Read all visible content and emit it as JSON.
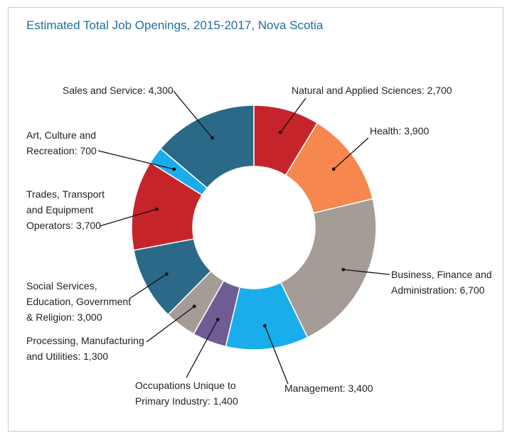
{
  "chart_data": {
    "type": "pie",
    "donut": true,
    "title": "Estimated Total Job Openings, 2015-2017, Nova Scotia",
    "slices": [
      {
        "name": "Natural and Applied Sciences",
        "value": 2700,
        "color": "#c6242b",
        "label_lines": [
          "Natural and Applied Sciences: 2,700"
        ]
      },
      {
        "name": "Health",
        "value": 3900,
        "color": "#f5874f",
        "label_lines": [
          "Health: 3,900"
        ]
      },
      {
        "name": "Business, Finance and Administration",
        "value": 6700,
        "color": "#a69c97",
        "label_lines": [
          "Business, Finance and",
          "Administration: 6,700"
        ]
      },
      {
        "name": "Management",
        "value": 3400,
        "color": "#19aeeb",
        "label_lines": [
          "Management: 3,400"
        ]
      },
      {
        "name": "Occupations Unique to Primary Industry",
        "value": 1400,
        "color": "#6f5c93",
        "label_lines": [
          "Occupations Unique to",
          "Primary Industry: 1,400"
        ]
      },
      {
        "name": "Processing, Manufacturing and Utilities",
        "value": 1300,
        "color": "#a69c97",
        "label_lines": [
          "Processing, Manufacturing",
          "and Utilities: 1,300"
        ]
      },
      {
        "name": "Social Services, Education, Government & Religion",
        "value": 3000,
        "color": "#2a6a88",
        "label_lines": [
          "Social Services,",
          "Education, Government",
          "& Religion: 3,000"
        ]
      },
      {
        "name": "Trades, Transport and Equipment Operators",
        "value": 3700,
        "color": "#c6242b",
        "label_lines": [
          "Trades, Transport",
          "and Equipment",
          "Operators: 3,700"
        ]
      },
      {
        "name": "Art, Culture and Recreation",
        "value": 700,
        "color": "#19aeeb",
        "label_lines": [
          "Art, Culture and",
          "Recreation: 700"
        ]
      },
      {
        "name": "Sales and Service",
        "value": 4300,
        "color": "#2a6a88",
        "label_lines": [
          "Sales and Service: 4,300"
        ]
      }
    ]
  }
}
